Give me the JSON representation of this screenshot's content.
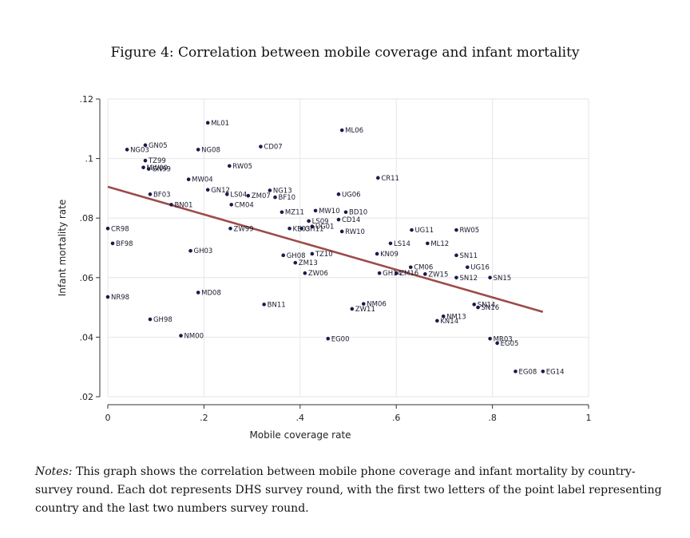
{
  "figure_title": "Figure 4: Correlation between mobile coverage and infant mortality",
  "notes": {
    "lead": "Notes:",
    "text": " This graph shows the correlation between mobile phone coverage and infant mortality by country-survey round. Each dot represents DHS survey round, with the first two letters of the point label representing country and the last two numbers survey round."
  },
  "colors": {
    "point": "#1a1a4a",
    "fit_line": "#9e4a4a",
    "axis": "#333333",
    "grid": "#e6e6e6"
  },
  "chart_data": {
    "type": "scatter",
    "xlabel": "Mobile coverage rate",
    "ylabel": "Infant mortality rate",
    "xlim": [
      0,
      1
    ],
    "ylim": [
      0.02,
      0.12
    ],
    "x_ticks": [
      0,
      0.2,
      0.4,
      0.6,
      0.8,
      1
    ],
    "x_tick_labels": [
      "0",
      ".2",
      ".4",
      ".6",
      ".8",
      "1"
    ],
    "y_ticks": [
      0.02,
      0.04,
      0.06,
      0.08,
      0.1,
      0.12
    ],
    "y_tick_labels": [
      ".02",
      ".04",
      ".06",
      ".08",
      ".1",
      ".12"
    ],
    "grid": true,
    "fit_line": {
      "x": [
        0,
        0.905
      ],
      "y": [
        0.0905,
        0.0485
      ]
    },
    "points": [
      {
        "label": "ML06",
        "x": 0.487,
        "y": 0.1095
      },
      {
        "label": "ML01",
        "x": 0.208,
        "y": 0.112
      },
      {
        "label": "NG03",
        "x": 0.04,
        "y": 0.103
      },
      {
        "label": "GN05",
        "x": 0.078,
        "y": 0.1045
      },
      {
        "label": "NG08",
        "x": 0.188,
        "y": 0.103
      },
      {
        "label": "CD07",
        "x": 0.318,
        "y": 0.104
      },
      {
        "label": "TZ99",
        "x": 0.078,
        "y": 0.0993
      },
      {
        "label": "MW00",
        "x": 0.074,
        "y": 0.097
      },
      {
        "label": "GN99",
        "x": 0.085,
        "y": 0.0965
      },
      {
        "label": "RW05",
        "x": 0.253,
        "y": 0.0975
      },
      {
        "label": "CR11",
        "x": 0.562,
        "y": 0.0935
      },
      {
        "label": "MW04",
        "x": 0.168,
        "y": 0.093
      },
      {
        "label": "GN12",
        "x": 0.208,
        "y": 0.0895
      },
      {
        "label": "LS04",
        "x": 0.248,
        "y": 0.088
      },
      {
        "label": "ZM07",
        "x": 0.292,
        "y": 0.0875
      },
      {
        "label": "NG13",
        "x": 0.337,
        "y": 0.0893
      },
      {
        "label": "BF10",
        "x": 0.348,
        "y": 0.087
      },
      {
        "label": "UG06",
        "x": 0.48,
        "y": 0.088
      },
      {
        "label": "BF03",
        "x": 0.088,
        "y": 0.088
      },
      {
        "label": "BN01",
        "x": 0.132,
        "y": 0.0845
      },
      {
        "label": "CM04",
        "x": 0.257,
        "y": 0.0845
      },
      {
        "label": "MZ11",
        "x": 0.362,
        "y": 0.082
      },
      {
        "label": "MW10",
        "x": 0.432,
        "y": 0.0825
      },
      {
        "label": "BD10",
        "x": 0.495,
        "y": 0.082
      },
      {
        "label": "CD14",
        "x": 0.48,
        "y": 0.0795
      },
      {
        "label": "LS09",
        "x": 0.418,
        "y": 0.079
      },
      {
        "label": "UG01",
        "x": 0.425,
        "y": 0.0772
      },
      {
        "label": "KE03",
        "x": 0.378,
        "y": 0.0765
      },
      {
        "label": "GH11",
        "x": 0.403,
        "y": 0.0765
      },
      {
        "label": "RW10",
        "x": 0.487,
        "y": 0.0755
      },
      {
        "label": "CR98",
        "x": 0.0,
        "y": 0.0765
      },
      {
        "label": "ZW99",
        "x": 0.255,
        "y": 0.0765
      },
      {
        "label": "UG11",
        "x": 0.632,
        "y": 0.076
      },
      {
        "label": "RW05",
        "x": 0.725,
        "y": 0.076
      },
      {
        "label": "BF98",
        "x": 0.01,
        "y": 0.0715
      },
      {
        "label": "LS14",
        "x": 0.588,
        "y": 0.0715
      },
      {
        "label": "ML12",
        "x": 0.665,
        "y": 0.0715
      },
      {
        "label": "GH03",
        "x": 0.172,
        "y": 0.069
      },
      {
        "label": "TZ10",
        "x": 0.425,
        "y": 0.068
      },
      {
        "label": "GH08",
        "x": 0.365,
        "y": 0.0675
      },
      {
        "label": "KN09",
        "x": 0.56,
        "y": 0.068
      },
      {
        "label": "SN11",
        "x": 0.725,
        "y": 0.0675
      },
      {
        "label": "ZM13",
        "x": 0.39,
        "y": 0.065
      },
      {
        "label": "CM06",
        "x": 0.63,
        "y": 0.0635
      },
      {
        "label": "UG16",
        "x": 0.748,
        "y": 0.0635
      },
      {
        "label": "ZW06",
        "x": 0.41,
        "y": 0.0615
      },
      {
        "label": "GH14",
        "x": 0.565,
        "y": 0.0615
      },
      {
        "label": "ZM16",
        "x": 0.6,
        "y": 0.0615
      },
      {
        "label": "ZW15",
        "x": 0.66,
        "y": 0.0612
      },
      {
        "label": "SN12",
        "x": 0.725,
        "y": 0.06
      },
      {
        "label": "SN15",
        "x": 0.795,
        "y": 0.06
      },
      {
        "label": "NR98",
        "x": 0.0,
        "y": 0.0535
      },
      {
        "label": "MD08",
        "x": 0.188,
        "y": 0.055
      },
      {
        "label": "BN11",
        "x": 0.325,
        "y": 0.051
      },
      {
        "label": "NM06",
        "x": 0.532,
        "y": 0.0512
      },
      {
        "label": "ZW11",
        "x": 0.508,
        "y": 0.0495
      },
      {
        "label": "SN14",
        "x": 0.762,
        "y": 0.051
      },
      {
        "label": "SN16",
        "x": 0.77,
        "y": 0.05
      },
      {
        "label": "NM13",
        "x": 0.698,
        "y": 0.047
      },
      {
        "label": "KN14",
        "x": 0.685,
        "y": 0.0455
      },
      {
        "label": "GH98",
        "x": 0.088,
        "y": 0.046
      },
      {
        "label": "NM00",
        "x": 0.152,
        "y": 0.0405
      },
      {
        "label": "EG00",
        "x": 0.458,
        "y": 0.0395
      },
      {
        "label": "MR03",
        "x": 0.795,
        "y": 0.0395
      },
      {
        "label": "EG05",
        "x": 0.81,
        "y": 0.038
      },
      {
        "label": "EG08",
        "x": 0.848,
        "y": 0.0285
      },
      {
        "label": "EG14",
        "x": 0.905,
        "y": 0.0285
      }
    ]
  }
}
